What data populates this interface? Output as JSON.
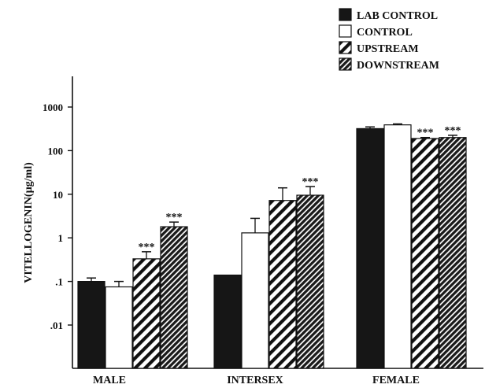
{
  "chart_data": {
    "type": "bar",
    "y_scale": "log",
    "ylabel": "VITELLOGENIN(µg/ml)",
    "ylim": [
      0.003,
      3000
    ],
    "ytick_values": [
      0.01,
      0.1,
      1,
      10,
      100,
      1000
    ],
    "ytick_labels": [
      ".01",
      ".1",
      "1",
      "10",
      "100",
      "1000"
    ],
    "categories": [
      "MALE",
      "INTERSEX",
      "FEMALE"
    ],
    "significance_marker": "***",
    "legend_position": "top-right",
    "series": [
      {
        "name": "LAB CONTROL",
        "pattern": "solid-dark",
        "values": [
          0.1,
          0.14,
          320
        ],
        "error": [
          0.12,
          null,
          350
        ],
        "significant": [
          false,
          false,
          false
        ]
      },
      {
        "name": "CONTROL",
        "pattern": "white",
        "values": [
          0.075,
          1.3,
          390
        ],
        "error": [
          0.1,
          2.8,
          410
        ],
        "significant": [
          false,
          false,
          false
        ]
      },
      {
        "name": "UPSTREAM",
        "pattern": "hatch-diagonal",
        "values": [
          0.33,
          7.2,
          190
        ],
        "error": [
          0.48,
          14,
          200
        ],
        "significant": [
          true,
          false,
          true
        ]
      },
      {
        "name": "DOWNSTREAM",
        "pattern": "hatch-dense",
        "values": [
          1.8,
          9.5,
          200
        ],
        "error": [
          2.3,
          15,
          225
        ],
        "significant": [
          true,
          true,
          true
        ]
      }
    ]
  },
  "colors": {
    "bar_dark": "#161616",
    "axis": "#111111",
    "background": "#ffffff"
  }
}
